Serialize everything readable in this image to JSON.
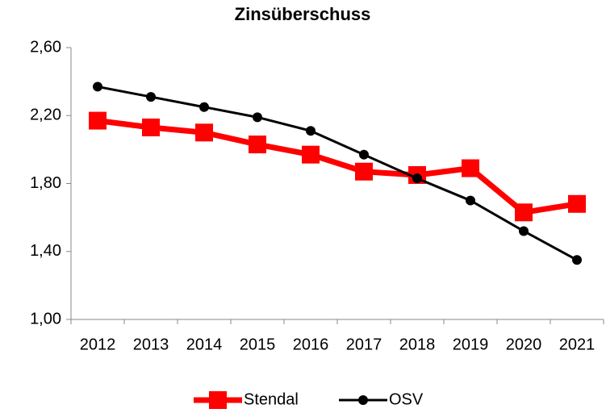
{
  "chart_data": {
    "type": "line",
    "title": "Zinsüberschuss",
    "categories": [
      "2012",
      "2013",
      "2014",
      "2015",
      "2016",
      "2017",
      "2018",
      "2019",
      "2020",
      "2021"
    ],
    "series": [
      {
        "name": "Stendal",
        "color": "#ff0000",
        "marker": "square",
        "values": [
          2.17,
          2.13,
          2.1,
          2.03,
          1.97,
          1.87,
          1.85,
          1.89,
          1.63,
          1.68
        ]
      },
      {
        "name": "OSV",
        "color": "#000000",
        "marker": "circle",
        "values": [
          2.37,
          2.31,
          2.25,
          2.19,
          2.11,
          1.97,
          1.83,
          1.7,
          1.52,
          1.35
        ]
      }
    ],
    "ylim": [
      1.0,
      2.6
    ],
    "yticks": [
      {
        "value": 1.0,
        "label": "1,00"
      },
      {
        "value": 1.4,
        "label": "1,40"
      },
      {
        "value": 1.8,
        "label": "1,80"
      },
      {
        "value": 2.2,
        "label": "2,20"
      },
      {
        "value": 2.6,
        "label": "2,60"
      }
    ],
    "grid": false,
    "legend": "bottom"
  }
}
